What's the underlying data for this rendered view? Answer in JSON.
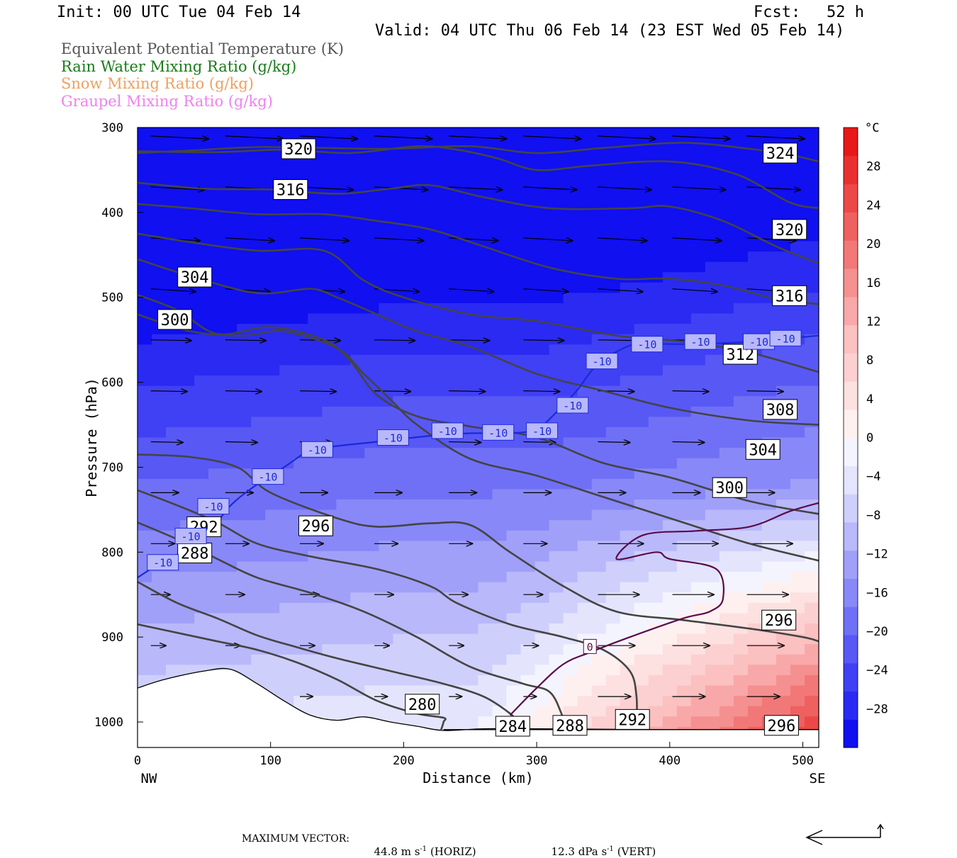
{
  "header": {
    "init": "Init: 00 UTC Tue 04 Feb 14",
    "fcst_label": "Fcst:",
    "fcst_value": "52 h",
    "valid": "Valid: 04 UTC Thu 06 Feb 14 (23 EST Wed 05 Feb 14)"
  },
  "legend": [
    {
      "text": "Equivalent Potential Temperature (K)",
      "color": "#555555"
    },
    {
      "text": "Rain Water Mixing Ratio (g/kg)",
      "color": "#1a7a1a"
    },
    {
      "text": "Snow Mixing Ratio (g/kg)",
      "color": "#f0a060"
    },
    {
      "text": "Graupel Mixing Ratio (g/kg)",
      "color": "#f080f0"
    }
  ],
  "footer": {
    "max_vector_label": "MAXIMUM VECTOR:",
    "horiz_value": "44.8 m s",
    "horiz_unit_sup": "-1",
    "horiz_tag": "(HORIZ)",
    "vert_value": "12.3 dPa s",
    "vert_unit_sup": "-1",
    "vert_tag": "(VERT)"
  },
  "chart_data": {
    "type": "cross-section",
    "xlabel": "Distance (km)",
    "ylabel": "Pressure (hPa)",
    "x_ticks": [
      0,
      100,
      200,
      300,
      400,
      500
    ],
    "xlim": [
      0,
      512
    ],
    "y_ticks": [
      300,
      400,
      500,
      600,
      700,
      800,
      900,
      1000
    ],
    "ylim": [
      300,
      1030
    ],
    "x_end_labels": {
      "left": "NW",
      "right": "SE"
    },
    "colorbar": {
      "unit": "°C",
      "ticks": [
        28,
        24,
        20,
        16,
        12,
        8,
        4,
        0,
        -4,
        -8,
        -12,
        -16,
        -20,
        -24,
        -28
      ],
      "range": [
        -32,
        32
      ],
      "colors": [
        "#1010f0",
        "#2a2af2",
        "#4040f4",
        "#5858f5",
        "#7070f6",
        "#8888f8",
        "#a0a0f9",
        "#b8b8fa",
        "#cfcffc",
        "#e4e4fd",
        "#f4f4ff",
        "#fff0f0",
        "#fde0e0",
        "#fcd0d0",
        "#fbc0c0",
        "#f8a8a8",
        "#f59090",
        "#f27878",
        "#ef6060",
        "#ec4848",
        "#e93030",
        "#e61818"
      ]
    },
    "theta_e_contours": [
      {
        "label": "324",
        "points": [
          [
            0,
            330
          ],
          [
            40,
            327
          ],
          [
            90,
            323
          ],
          [
            140,
            324
          ],
          [
            190,
            325
          ],
          [
            250,
            322
          ],
          [
            300,
            330
          ],
          [
            350,
            324
          ],
          [
            410,
            318
          ],
          [
            460,
            325
          ],
          [
            490,
            332
          ],
          [
            512,
            340
          ]
        ]
      },
      {
        "label": "320",
        "points": [
          [
            0,
            328
          ],
          [
            60,
            329
          ],
          [
            110,
            326
          ],
          [
            160,
            330
          ],
          [
            210,
            322
          ],
          [
            240,
            326
          ],
          [
            270,
            336
          ],
          [
            300,
            350
          ],
          [
            340,
            345
          ],
          [
            400,
            340
          ],
          [
            450,
            355
          ],
          [
            490,
            388
          ],
          [
            512,
            395
          ]
        ]
      },
      {
        "label": "320",
        "points": [
          [
            0,
            365
          ],
          [
            50,
            372
          ],
          [
            100,
            373
          ],
          [
            150,
            378
          ],
          [
            190,
            372
          ],
          [
            220,
            368
          ],
          [
            260,
            382
          ],
          [
            310,
            395
          ],
          [
            370,
            395
          ],
          [
            400,
            393
          ],
          [
            440,
            410
          ],
          [
            480,
            440
          ],
          [
            512,
            460
          ]
        ]
      },
      {
        "label": "316",
        "points": [
          [
            0,
            390
          ],
          [
            40,
            395
          ],
          [
            90,
            402
          ],
          [
            140,
            402
          ],
          [
            180,
            410
          ],
          [
            220,
            420
          ],
          [
            260,
            440
          ],
          [
            310,
            465
          ],
          [
            360,
            478
          ],
          [
            400,
            478
          ],
          [
            440,
            486
          ],
          [
            480,
            502
          ],
          [
            512,
            508
          ]
        ]
      },
      {
        "label": "312",
        "points": [
          [
            0,
            425
          ],
          [
            40,
            435
          ],
          [
            90,
            445
          ],
          [
            140,
            445
          ],
          [
            170,
            480
          ],
          [
            200,
            500
          ],
          [
            250,
            520
          ],
          [
            300,
            528
          ],
          [
            360,
            545
          ],
          [
            410,
            552
          ],
          [
            460,
            565
          ],
          [
            512,
            588
          ]
        ]
      },
      {
        "label": "308",
        "points": [
          [
            0,
            455
          ],
          [
            40,
            475
          ],
          [
            90,
            495
          ],
          [
            130,
            490
          ],
          [
            150,
            500
          ],
          [
            180,
            520
          ],
          [
            210,
            540
          ],
          [
            250,
            558
          ],
          [
            300,
            590
          ],
          [
            350,
            610
          ],
          [
            400,
            630
          ],
          [
            460,
            645
          ],
          [
            512,
            650
          ]
        ]
      },
      {
        "label": "304",
        "points": [
          [
            0,
            497
          ],
          [
            30,
            515
          ],
          [
            60,
            543
          ],
          [
            100,
            535
          ],
          [
            140,
            550
          ],
          [
            160,
            575
          ],
          [
            180,
            615
          ],
          [
            210,
            640
          ],
          [
            250,
            652
          ],
          [
            300,
            665
          ],
          [
            350,
            695
          ],
          [
            400,
            712
          ],
          [
            460,
            740
          ],
          [
            512,
            755
          ]
        ]
      },
      {
        "label": "300",
        "points": [
          [
            0,
            520
          ],
          [
            40,
            540
          ],
          [
            80,
            545
          ],
          [
            110,
            540
          ],
          [
            150,
            560
          ],
          [
            170,
            590
          ],
          [
            190,
            620
          ],
          [
            210,
            650
          ],
          [
            250,
            690
          ],
          [
            300,
            710
          ],
          [
            350,
            735
          ],
          [
            410,
            765
          ],
          [
            460,
            790
          ],
          [
            512,
            810
          ]
        ]
      },
      {
        "label": "296",
        "points": [
          [
            0,
            685
          ],
          [
            40,
            688
          ],
          [
            75,
            700
          ],
          [
            100,
            730
          ],
          [
            150,
            760
          ],
          [
            180,
            770
          ],
          [
            220,
            766
          ],
          [
            250,
            768
          ],
          [
            280,
            800
          ],
          [
            320,
            840
          ],
          [
            360,
            870
          ],
          [
            410,
            880
          ],
          [
            460,
            890
          ],
          [
            500,
            900
          ],
          [
            512,
            905
          ]
        ]
      },
      {
        "label": "292",
        "points": [
          [
            0,
            727
          ],
          [
            30,
            745
          ],
          [
            60,
            765
          ],
          [
            90,
            790
          ],
          [
            130,
            805
          ],
          [
            180,
            820
          ],
          [
            220,
            840
          ],
          [
            240,
            860
          ],
          [
            280,
            885
          ],
          [
            320,
            900
          ],
          [
            350,
            915
          ],
          [
            370,
            940
          ],
          [
            375,
            970
          ],
          [
            375,
            1005
          ]
        ]
      },
      {
        "label": "288",
        "points": [
          [
            0,
            765
          ],
          [
            30,
            785
          ],
          [
            60,
            808
          ],
          [
            90,
            830
          ],
          [
            130,
            848
          ],
          [
            170,
            870
          ],
          [
            210,
            900
          ],
          [
            250,
            935
          ],
          [
            290,
            955
          ],
          [
            310,
            965
          ],
          [
            320,
            995
          ],
          [
            325,
            1010
          ]
        ]
      },
      {
        "label": "284",
        "points": [
          [
            0,
            835
          ],
          [
            30,
            860
          ],
          [
            60,
            878
          ],
          [
            90,
            898
          ],
          [
            120,
            912
          ],
          [
            150,
            925
          ],
          [
            190,
            940
          ],
          [
            230,
            955
          ],
          [
            260,
            970
          ],
          [
            280,
            990
          ],
          [
            285,
            1000
          ]
        ]
      },
      {
        "label": "280",
        "points": [
          [
            0,
            885
          ],
          [
            30,
            895
          ],
          [
            60,
            905
          ],
          [
            90,
            915
          ],
          [
            120,
            930
          ],
          [
            150,
            950
          ],
          [
            180,
            975
          ],
          [
            210,
            990
          ],
          [
            230,
            995
          ],
          [
            230,
            1000
          ],
          [
            228,
            1010
          ]
        ]
      }
    ],
    "minus10_isotherm": [
      [
        0,
        830
      ],
      [
        20,
        810
      ],
      [
        40,
        795
      ],
      [
        55,
        775
      ],
      [
        70,
        745
      ],
      [
        90,
        720
      ],
      [
        110,
        700
      ],
      [
        130,
        680
      ],
      [
        150,
        675
      ],
      [
        180,
        670
      ],
      [
        220,
        663
      ],
      [
        250,
        660
      ],
      [
        280,
        660
      ],
      [
        300,
        655
      ],
      [
        315,
        635
      ],
      [
        330,
        610
      ],
      [
        345,
        580
      ],
      [
        365,
        560
      ],
      [
        380,
        555
      ],
      [
        420,
        555
      ],
      [
        460,
        552
      ],
      [
        512,
        545
      ]
    ],
    "zero_isotherm": [
      [
        280,
        992
      ],
      [
        300,
        960
      ],
      [
        320,
        932
      ],
      [
        340,
        918
      ],
      [
        370,
        900
      ],
      [
        410,
        878
      ],
      [
        430,
        870
      ],
      [
        440,
        855
      ],
      [
        435,
        820
      ],
      [
        400,
        808
      ],
      [
        390,
        800
      ],
      [
        360,
        808
      ],
      [
        380,
        780
      ],
      [
        420,
        775
      ],
      [
        460,
        770
      ],
      [
        490,
        752
      ],
      [
        512,
        742
      ]
    ],
    "terrain_surface_hPa": [
      [
        0,
        960
      ],
      [
        20,
        950
      ],
      [
        50,
        940
      ],
      [
        70,
        938
      ],
      [
        90,
        955
      ],
      [
        110,
        975
      ],
      [
        130,
        992
      ],
      [
        150,
        998
      ],
      [
        170,
        994
      ],
      [
        190,
        1000
      ],
      [
        210,
        1005
      ],
      [
        230,
        1010
      ],
      [
        260,
        1008
      ],
      [
        300,
        1008
      ],
      [
        400,
        1009
      ],
      [
        512,
        1009
      ]
    ],
    "ground_line_hPa": 1009,
    "wind_vectors_note": "horizontal wind arrows pointing toward SE across domain",
    "contour_label_positions": [
      {
        "text": "320",
        "x": 121,
        "p": 325
      },
      {
        "text": "316",
        "x": 115,
        "p": 373
      },
      {
        "text": "304",
        "x": 43,
        "p": 476
      },
      {
        "text": "300",
        "x": 28,
        "p": 526
      },
      {
        "text": "324",
        "x": 483,
        "p": 330
      },
      {
        "text": "320",
        "x": 490,
        "p": 420
      },
      {
        "text": "316",
        "x": 490,
        "p": 498
      },
      {
        "text": "312",
        "x": 453,
        "p": 567
      },
      {
        "text": "308",
        "x": 483,
        "p": 632
      },
      {
        "text": "304",
        "x": 470,
        "p": 679
      },
      {
        "text": "300",
        "x": 445,
        "p": 724
      },
      {
        "text": "296",
        "x": 134,
        "p": 769
      },
      {
        "text": "292",
        "x": 50,
        "p": 770
      },
      {
        "text": "288",
        "x": 43,
        "p": 801
      },
      {
        "text": "296",
        "x": 482,
        "p": 880
      },
      {
        "text": "280",
        "x": 214,
        "p": 979
      },
      {
        "text": "284",
        "x": 282,
        "p": 1005
      },
      {
        "text": "288",
        "x": 325,
        "p": 1004
      },
      {
        "text": "292",
        "x": 372,
        "p": 997
      },
      {
        "text": "296",
        "x": 484,
        "p": 1004
      },
      {
        "text": "0",
        "x": 340,
        "p": 911
      }
    ],
    "minus10_label_positions": [
      {
        "x": 19,
        "p": 812
      },
      {
        "x": 40,
        "p": 781
      },
      {
        "x": 57,
        "p": 746
      },
      {
        "x": 98,
        "p": 711
      },
      {
        "x": 135,
        "p": 679
      },
      {
        "x": 192,
        "p": 665
      },
      {
        "x": 233,
        "p": 657
      },
      {
        "x": 271,
        "p": 659
      },
      {
        "x": 304,
        "p": 657
      },
      {
        "x": 327,
        "p": 627
      },
      {
        "x": 349,
        "p": 575
      },
      {
        "x": 383,
        "p": 555
      },
      {
        "x": 423,
        "p": 552
      },
      {
        "x": 467,
        "p": 552
      },
      {
        "x": 487,
        "p": 548
      }
    ],
    "minus10_label_text": "-10"
  }
}
